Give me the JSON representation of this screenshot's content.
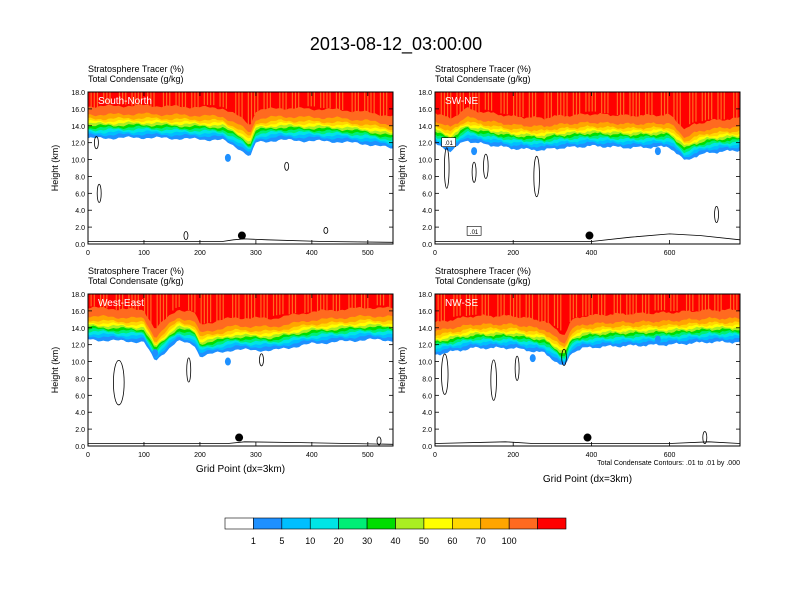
{
  "title": "2013-08-12_03:00:00",
  "colors": {
    "levels": [
      "#ffffff",
      "#1e90ff",
      "#00bfff",
      "#00e5e5",
      "#00ee76",
      "#00dd00",
      "#aaee22",
      "#ffff00",
      "#ffd700",
      "#ffa500",
      "#ff6a1f",
      "#ff0000"
    ],
    "frame": "#000000",
    "contour": "#000000"
  },
  "colorbar": {
    "labels": [
      "1",
      "5",
      "10",
      "20",
      "30",
      "40",
      "50",
      "60",
      "70",
      "100"
    ]
  },
  "chart_data": [
    {
      "type": "heatmap",
      "panel_label": "South-North",
      "titles": [
        "Stratosphere Tracer   (%)",
        "Total Condensate   (g/kg)"
      ],
      "ylabel": "Height (km)",
      "xlabel": "",
      "xlim": [
        0,
        545
      ],
      "ylim": [
        0,
        18
      ],
      "x_ticks": [
        "0",
        "100",
        "200",
        "300",
        "400",
        "500"
      ],
      "x_tick_values": [
        0,
        100,
        200,
        300,
        400,
        500
      ],
      "y_ticks": [
        "0.0",
        "2.0",
        "4.0",
        "6.0",
        "8.0",
        "10.0",
        "12.0",
        "14.0",
        "16.0",
        "18.0"
      ],
      "tropopause_x": [
        0,
        100,
        200,
        240,
        270,
        290,
        300,
        340,
        400,
        450,
        500,
        545
      ],
      "tropopause_km": [
        13.7,
        13.8,
        13.6,
        13.5,
        12.5,
        11.5,
        13.2,
        13.5,
        13.4,
        13.3,
        13.0,
        12.5
      ],
      "marker": {
        "x": 275,
        "y_km": 1.0
      },
      "terrain": [
        [
          0,
          0.3
        ],
        [
          240,
          0.3
        ],
        [
          260,
          0.5
        ],
        [
          280,
          0.6
        ],
        [
          320,
          0.5
        ],
        [
          420,
          0.3
        ],
        [
          545,
          0.2
        ]
      ]
    },
    {
      "type": "heatmap",
      "panel_label": "SW-NE",
      "titles": [
        "Stratosphere Tracer   (%)",
        "Total Condensate   (g/kg)"
      ],
      "ylabel": "Height (km)",
      "xlabel": "",
      "xlim": [
        0,
        780
      ],
      "ylim": [
        0,
        18
      ],
      "x_ticks": [
        "0",
        "200",
        "400",
        "600"
      ],
      "x_tick_values": [
        0,
        200,
        400,
        600
      ],
      "y_ticks": [
        "0.0",
        "2.0",
        "4.0",
        "6.0",
        "8.0",
        "10.0",
        "12.0",
        "14.0",
        "16.0",
        "18.0"
      ],
      "tropopause_x": [
        0,
        40,
        80,
        100,
        200,
        280,
        300,
        400,
        500,
        600,
        640,
        660,
        700,
        780
      ],
      "tropopause_km": [
        13.0,
        12.2,
        13.5,
        13.2,
        12.5,
        12.3,
        12.5,
        12.8,
        12.6,
        12.7,
        11.0,
        11.5,
        12.0,
        12.3
      ],
      "marker": {
        "x": 395,
        "y_km": 1.0
      },
      "contour_labels": [
        ".01",
        ".01"
      ],
      "terrain": [
        [
          0,
          0.3
        ],
        [
          400,
          0.3
        ],
        [
          500,
          0.8
        ],
        [
          600,
          1.2
        ],
        [
          680,
          1.0
        ],
        [
          780,
          0.5
        ]
      ]
    },
    {
      "type": "heatmap",
      "panel_label": "West-East",
      "titles": [
        "Stratosphere Tracer   (%)",
        "Total Condensate   (g/kg)"
      ],
      "ylabel": "Height (km)",
      "xlabel": "Grid Point (dx=3km)",
      "xlim": [
        0,
        545
      ],
      "ylim": [
        0,
        18
      ],
      "x_ticks": [
        "0",
        "100",
        "200",
        "300",
        "400",
        "500"
      ],
      "x_tick_values": [
        0,
        100,
        200,
        300,
        400,
        500
      ],
      "y_ticks": [
        "0.0",
        "2.0",
        "4.0",
        "6.0",
        "8.0",
        "10.0",
        "12.0",
        "14.0",
        "16.0",
        "18.0"
      ],
      "tropopause_x": [
        0,
        100,
        120,
        140,
        160,
        190,
        200,
        260,
        330,
        400,
        500,
        545
      ],
      "tropopause_km": [
        13.8,
        13.5,
        11.2,
        12.5,
        13.6,
        13.2,
        11.8,
        12.6,
        12.5,
        13.3,
        13.8,
        13.7
      ],
      "marker": {
        "x": 270,
        "y_km": 1.0
      },
      "terrain": [
        [
          0,
          0.3
        ],
        [
          250,
          0.3
        ],
        [
          280,
          0.5
        ],
        [
          380,
          0.4
        ],
        [
          545,
          0.2
        ]
      ]
    },
    {
      "type": "heatmap",
      "panel_label": "NW-SE",
      "titles": [
        "Stratosphere Tracer   (%)",
        "Total Condensate   (g/kg)"
      ],
      "ylabel": "Height (km)",
      "xlabel": "Grid Point (dx=3km)",
      "note": "Total Condensate Contours: .01 to .01 by .000",
      "xlim": [
        0,
        780
      ],
      "ylim": [
        0,
        18
      ],
      "x_ticks": [
        "0",
        "200",
        "400",
        "600"
      ],
      "x_tick_values": [
        0,
        200,
        400,
        600
      ],
      "y_ticks": [
        "0.0",
        "2.0",
        "4.0",
        "6.0",
        "8.0",
        "10.0",
        "12.0",
        "14.0",
        "16.0",
        "18.0"
      ],
      "tropopause_x": [
        0,
        60,
        100,
        200,
        280,
        330,
        350,
        380,
        450,
        600,
        700,
        780
      ],
      "tropopause_km": [
        12.0,
        12.5,
        12.8,
        12.8,
        12.2,
        10.5,
        12.3,
        12.8,
        13.0,
        13.2,
        13.5,
        13.5
      ],
      "marker": {
        "x": 390,
        "y_km": 1.0
      },
      "terrain": [
        [
          0,
          0.3
        ],
        [
          180,
          0.5
        ],
        [
          250,
          0.3
        ],
        [
          600,
          0.3
        ],
        [
          700,
          0.5
        ],
        [
          780,
          0.3
        ]
      ]
    }
  ]
}
